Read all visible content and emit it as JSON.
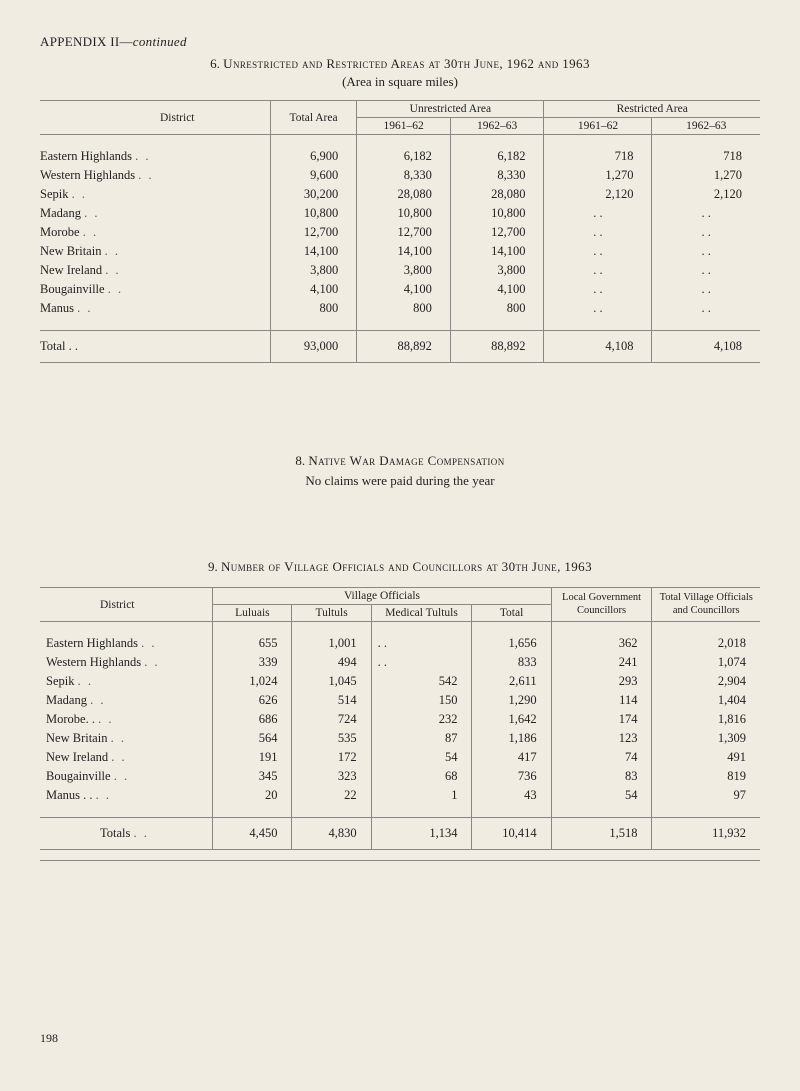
{
  "appendix": {
    "label": "APPENDIX II—",
    "cont": "continued"
  },
  "section6": {
    "title_prefix": "6. ",
    "title_sc": "Unrestricted and Restricted Areas at 30th June, 1962 and 1963",
    "sub": "(Area in square miles)"
  },
  "t6": {
    "cols": {
      "district": "District",
      "total_area": "Total Area",
      "unrestricted": "Unrestricted Area",
      "restricted": "Restricted Area",
      "y1": "1961–62",
      "y2": "1962–63"
    },
    "rows": [
      {
        "label": "Eastern Highlands",
        "ta": "6,900",
        "u1": "6,182",
        "u2": "6,182",
        "r1": "718",
        "r2": "718"
      },
      {
        "label": "Western Highlands",
        "ta": "9,600",
        "u1": "8,330",
        "u2": "8,330",
        "r1": "1,270",
        "r2": "1,270"
      },
      {
        "label": "Sepik",
        "ta": "30,200",
        "u1": "28,080",
        "u2": "28,080",
        "r1": "2,120",
        "r2": "2,120"
      },
      {
        "label": "Madang",
        "ta": "10,800",
        "u1": "10,800",
        "u2": "10,800",
        "r1": ". .",
        "r2": ". ."
      },
      {
        "label": "Morobe",
        "ta": "12,700",
        "u1": "12,700",
        "u2": "12,700",
        "r1": ". .",
        "r2": ". ."
      },
      {
        "label": "New Britain",
        "ta": "14,100",
        "u1": "14,100",
        "u2": "14,100",
        "r1": ". .",
        "r2": ". ."
      },
      {
        "label": "New Ireland",
        "ta": "3,800",
        "u1": "3,800",
        "u2": "3,800",
        "r1": ". .",
        "r2": ". ."
      },
      {
        "label": "Bougainville",
        "ta": "4,100",
        "u1": "4,100",
        "u2": "4,100",
        "r1": ". .",
        "r2": ". ."
      },
      {
        "label": "Manus",
        "ta": "800",
        "u1": "800",
        "u2": "800",
        "r1": ". .",
        "r2": ". ."
      }
    ],
    "total": {
      "label": "Total  . .",
      "ta": "93,000",
      "u1": "88,892",
      "u2": "88,892",
      "r1": "4,108",
      "r2": "4,108"
    }
  },
  "section8": {
    "title_prefix": "8. ",
    "title_sc": "Native War Damage Compensation",
    "line2": "No claims were paid during the year"
  },
  "section9": {
    "title_prefix": "9. ",
    "title_sc": "Number of Village Officials and Councillors at 30th June, 1963"
  },
  "t9": {
    "cols": {
      "district": "District",
      "village_officials": "Village Officials",
      "luluais": "Luluais",
      "tultuls": "Tultuls",
      "medical": "Medical Tultuls",
      "total": "Total",
      "local_gov": "Local Government Councillors",
      "total_village": "Total Village Officials and Councillors"
    },
    "rows": [
      {
        "label": "Eastern Highlands",
        "l": "655",
        "t": "1,001",
        "m": ". .",
        "tot": "1,656",
        "lg": "362",
        "tv": "2,018"
      },
      {
        "label": "Western Highlands",
        "l": "339",
        "t": "494",
        "m": ". .",
        "tot": "833",
        "lg": "241",
        "tv": "1,074"
      },
      {
        "label": "Sepik",
        "l": "1,024",
        "t": "1,045",
        "m": "542",
        "tot": "2,611",
        "lg": "293",
        "tv": "2,904"
      },
      {
        "label": "Madang",
        "l": "626",
        "t": "514",
        "m": "150",
        "tot": "1,290",
        "lg": "114",
        "tv": "1,404"
      },
      {
        "label": "Morobe. .",
        "l": "686",
        "t": "724",
        "m": "232",
        "tot": "1,642",
        "lg": "174",
        "tv": "1,816"
      },
      {
        "label": "New Britain",
        "l": "564",
        "t": "535",
        "m": "87",
        "tot": "1,186",
        "lg": "123",
        "tv": "1,309"
      },
      {
        "label": "New Ireland",
        "l": "191",
        "t": "172",
        "m": "54",
        "tot": "417",
        "lg": "74",
        "tv": "491"
      },
      {
        "label": "Bougainville",
        "l": "345",
        "t": "323",
        "m": "68",
        "tot": "736",
        "lg": "83",
        "tv": "819"
      },
      {
        "label": "Manus  . .",
        "l": "20",
        "t": "22",
        "m": "1",
        "tot": "43",
        "lg": "54",
        "tv": "97"
      }
    ],
    "total": {
      "label": "Totals",
      "l": "4,450",
      "t": "4,830",
      "m": "1,134",
      "tot": "10,414",
      "lg": "1,518",
      "tv": "11,932"
    }
  },
  "page_number": "198",
  "style": {
    "background": "#f0ece2",
    "rule_color": "#888",
    "text_color": "#222"
  }
}
